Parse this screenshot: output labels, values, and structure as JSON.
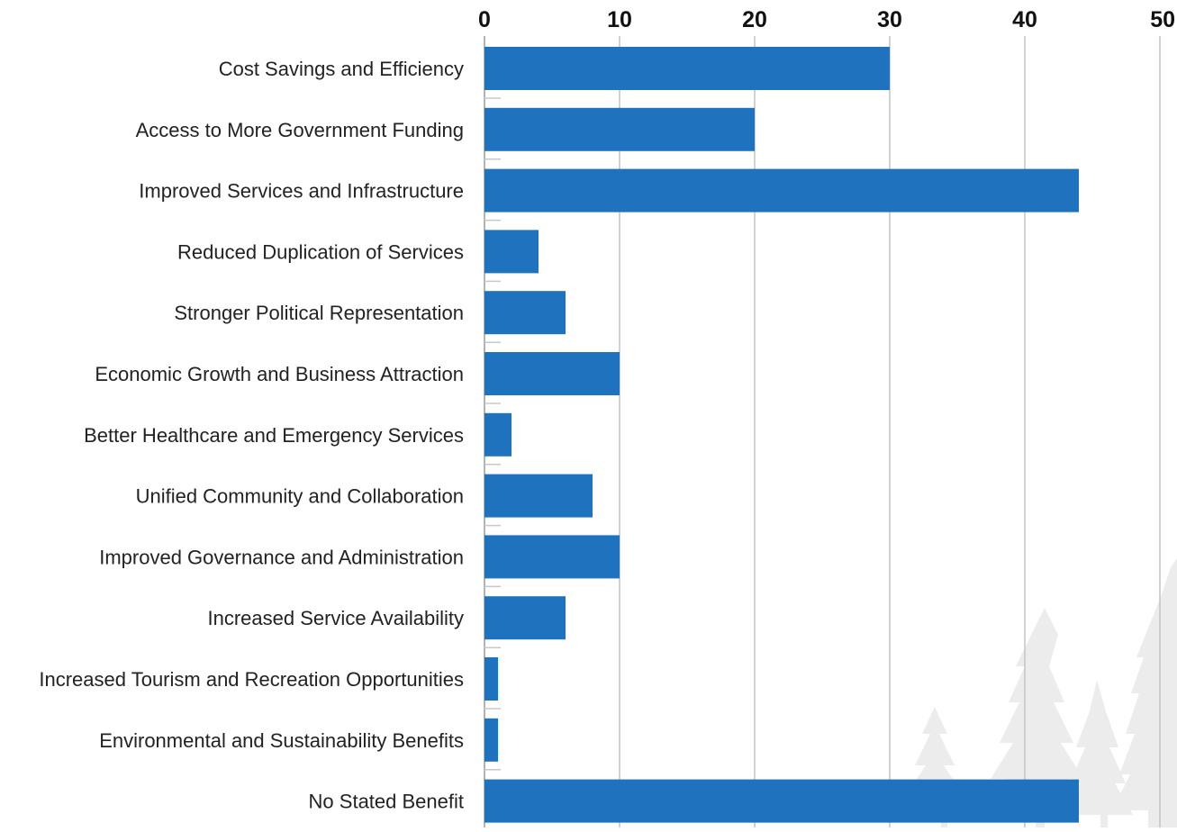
{
  "chart_data": {
    "type": "bar",
    "orientation": "horizontal",
    "x_axis_position": "top",
    "xlim": [
      0,
      50
    ],
    "x_ticks": [
      0,
      10,
      20,
      30,
      40,
      50
    ],
    "grid": true,
    "legend": "none",
    "bar_color": "#1f73be",
    "grid_color": "#c4c4c4",
    "background_decoration": "tree-silhouettes",
    "categories": [
      "Cost Savings and Efficiency",
      "Access to More Government Funding",
      "Improved Services and Infrastructure",
      "Reduced Duplication of Services",
      "Stronger Political Representation",
      "Economic Growth and Business Attraction",
      "Better Healthcare and Emergency Services",
      "Unified Community and Collaboration",
      "Improved Governance and Administration",
      "Increased Service Availability",
      "Increased Tourism and Recreation Opportunities",
      "Environmental and Sustainability Benefits",
      "No Stated Benefit"
    ],
    "values": [
      30,
      20,
      44,
      4,
      6,
      10,
      2,
      8,
      10,
      6,
      1,
      1,
      44
    ]
  }
}
